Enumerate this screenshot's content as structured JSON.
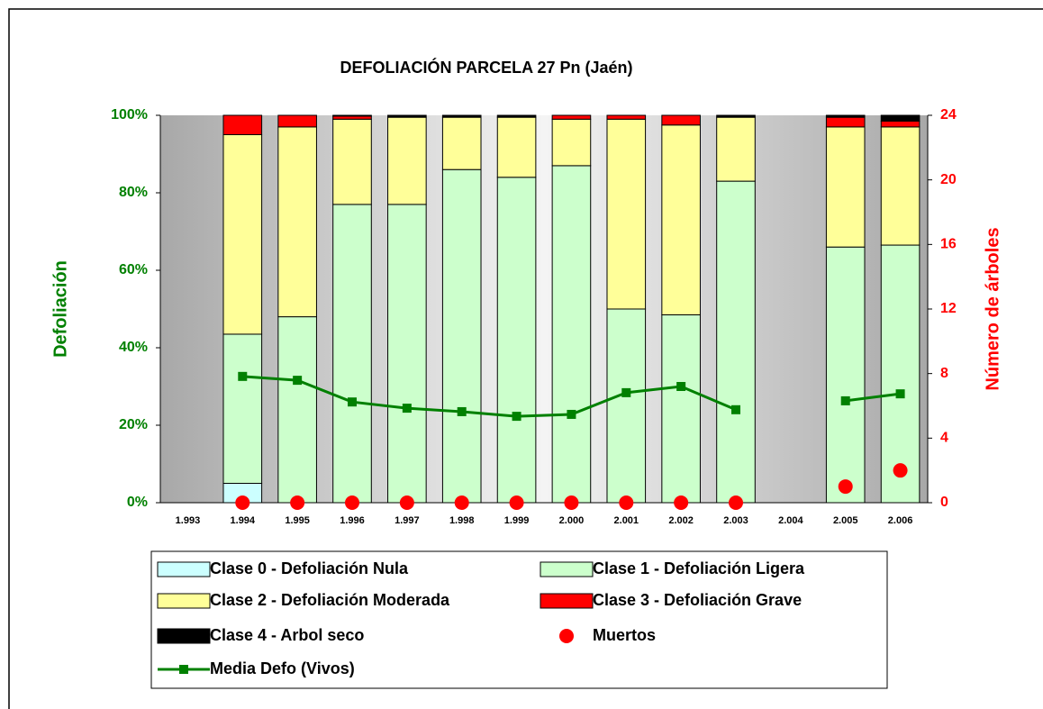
{
  "chart_data": {
    "type": "bar",
    "stacked": true,
    "title": "DEFOLIACIÓN PARCELA 27 Pn (Jaén)",
    "ylabel": "Defoliación",
    "y2label": "Número de árboles",
    "categories": [
      "1.993",
      "1.994",
      "1.995",
      "1.996",
      "1.997",
      "1.998",
      "1.999",
      "2.000",
      "2.001",
      "2.002",
      "2.003",
      "2.004",
      "2.005",
      "2.006"
    ],
    "series": [
      {
        "name": "Clase 0 - Defoliación Nula",
        "color": "#ccffff",
        "values": [
          null,
          5,
          0,
          0,
          0,
          0,
          0,
          0,
          0,
          0,
          0,
          null,
          0,
          0
        ]
      },
      {
        "name": "Clase 1 - Defoliación Ligera",
        "color": "#ccffcc",
        "values": [
          null,
          38.5,
          48,
          77,
          77,
          86,
          84,
          87,
          50,
          48.5,
          83,
          null,
          66,
          66.5
        ]
      },
      {
        "name": "Clase 2 - Defoliación Moderada",
        "color": "#ffff99",
        "values": [
          null,
          51.5,
          49,
          22,
          22.5,
          13.5,
          15.5,
          12,
          49,
          49,
          16.5,
          null,
          31,
          30.5
        ]
      },
      {
        "name": "Clase 3 - Defoliación Grave",
        "color": "#ff0000",
        "values": [
          null,
          5,
          3,
          0.8,
          0,
          0,
          0,
          1,
          1,
          2.5,
          0,
          null,
          2.5,
          1.5
        ]
      },
      {
        "name": "Clase 4 - Arbol seco",
        "color": "#000000",
        "values": [
          null,
          0,
          0,
          0.2,
          0.5,
          0.5,
          0.5,
          0,
          0,
          0,
          0.5,
          null,
          0.5,
          1.5
        ]
      },
      {
        "name": "Muertos",
        "color": "#ff0000",
        "type": "scatter",
        "axis": "y2",
        "values": [
          null,
          0,
          0,
          0,
          0,
          0,
          0,
          0,
          0,
          0,
          0,
          null,
          1,
          2
        ]
      },
      {
        "name": "Media Defo (Vivos)",
        "color": "#008000",
        "type": "line",
        "values": [
          null,
          32.6,
          31.6,
          26,
          24.4,
          23.5,
          22.3,
          22.8,
          28.4,
          30,
          24,
          null,
          26.3,
          28.1
        ]
      }
    ],
    "ylim": [
      0,
      100
    ],
    "yticks": [
      {
        "value": 0,
        "label": "0%"
      },
      {
        "value": 20,
        "label": "20%"
      },
      {
        "value": 40,
        "label": "40%"
      },
      {
        "value": 60,
        "label": "60%"
      },
      {
        "value": 80,
        "label": "80%"
      },
      {
        "value": 100,
        "label": "100%"
      }
    ],
    "y2lim": [
      0,
      24
    ],
    "y2ticks": [
      0,
      4,
      8,
      12,
      16,
      20,
      24
    ],
    "ycolor": "#008000",
    "y2color": "#ff0000",
    "legend": "bottom"
  }
}
